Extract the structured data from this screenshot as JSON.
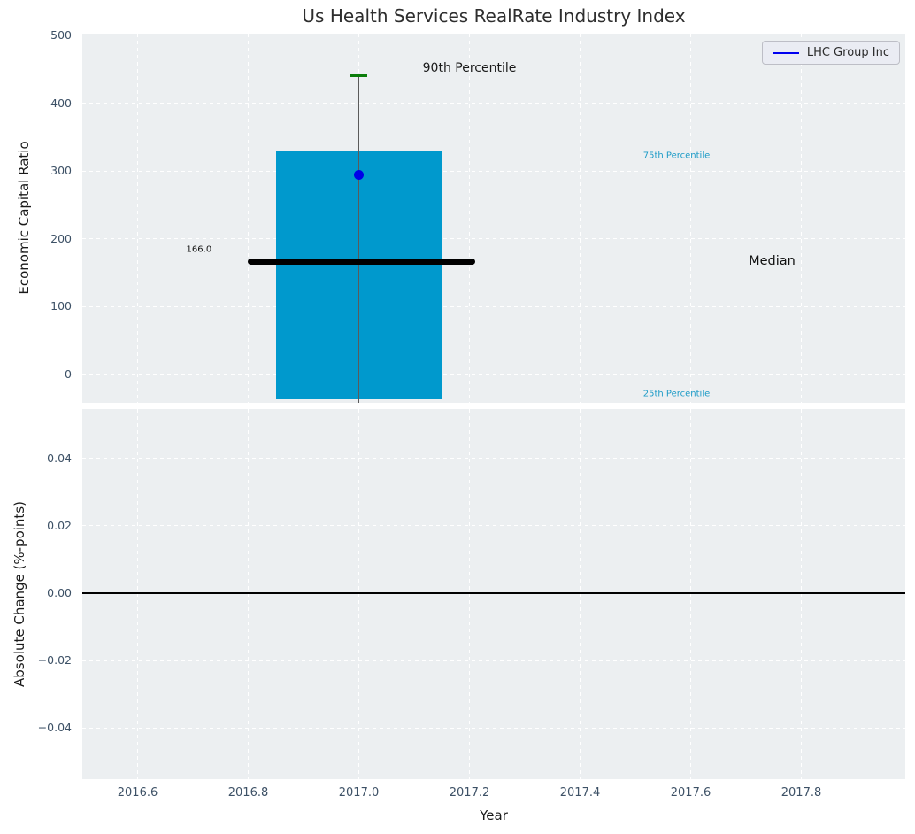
{
  "figure": {
    "background": "#ffffff",
    "axes_background": "#eceff1",
    "grid_color": "#ffffff"
  },
  "chart_data": {
    "type": "box",
    "title": "Us Health Services RealRate Industry Index",
    "xlabel": "Year",
    "xlim": [
      2016.5,
      2017.988
    ],
    "xticks": [
      2016.6,
      2016.8,
      2017.0,
      2017.2,
      2017.4,
      2017.6,
      2017.8
    ],
    "xtick_labels": [
      "2016.6",
      "2016.8",
      "2017.0",
      "2017.2",
      "2017.4",
      "2017.6",
      "2017.8"
    ],
    "grid": {
      "on": true,
      "style": "dashed",
      "color": "#ffffff"
    },
    "legend": {
      "label": "LHC Group Inc",
      "line_color": "#0000f0",
      "position": "upper right"
    },
    "panels": [
      {
        "ylabel": "Economic Capital Ratio",
        "ylim": [
          -41.8,
          502.6
        ],
        "yticks": [
          0,
          100,
          200,
          300,
          400,
          500
        ],
        "ytick_labels": [
          "0",
          "100",
          "200",
          "300",
          "400",
          "500"
        ],
        "series": {
          "name": "LHC Group Inc",
          "x": 2017.0,
          "marker_value": 295,
          "marker_color": "#0000e8",
          "box_q25": -37,
          "box_q75": 330,
          "box_x0": 2016.85,
          "box_x1": 2017.15,
          "box_color": "#0099cd",
          "median": 166.0,
          "median_x0": 2016.799,
          "median_x1": 2017.21,
          "median_color": "#000000",
          "p90": 440,
          "p90_cap_halfwidth": 0.0145,
          "p90_color": "#0b7d0b",
          "whisker_color": "#5a5a5a"
        },
        "annotations": [
          {
            "text": "90th Percentile",
            "x": 2017.2,
            "y": 452,
            "color": "#1a1a1a",
            "size": 14,
            "anchor": "middle"
          },
          {
            "text": "75th Percentile",
            "x": 2017.514,
            "y": 322,
            "color": "#1d9bc7",
            "size": 10,
            "anchor": "start"
          },
          {
            "text": "Median",
            "x": 2017.705,
            "y": 167,
            "color": "#111111",
            "size": 14.5,
            "anchor": "start"
          },
          {
            "text": "25th Percentile",
            "x": 2017.514,
            "y": -28.5,
            "color": "#1d9bc7",
            "size": 10,
            "anchor": "start"
          },
          {
            "text": "166.0",
            "x": 2016.711,
            "y": 184,
            "color": "#111111",
            "size": 10,
            "anchor": "middle"
          }
        ]
      },
      {
        "ylabel": "Absolute Change (%-points)",
        "ylim": [
          -0.0551,
          0.0546
        ],
        "yticks": [
          0.04,
          0.02,
          0,
          -0.02,
          -0.04
        ],
        "ytick_labels": [
          "0.04",
          "0.02",
          "0.00",
          "−0.02",
          "−0.04"
        ],
        "zero_line": {
          "value": 0,
          "color": "#000000"
        }
      }
    ]
  }
}
